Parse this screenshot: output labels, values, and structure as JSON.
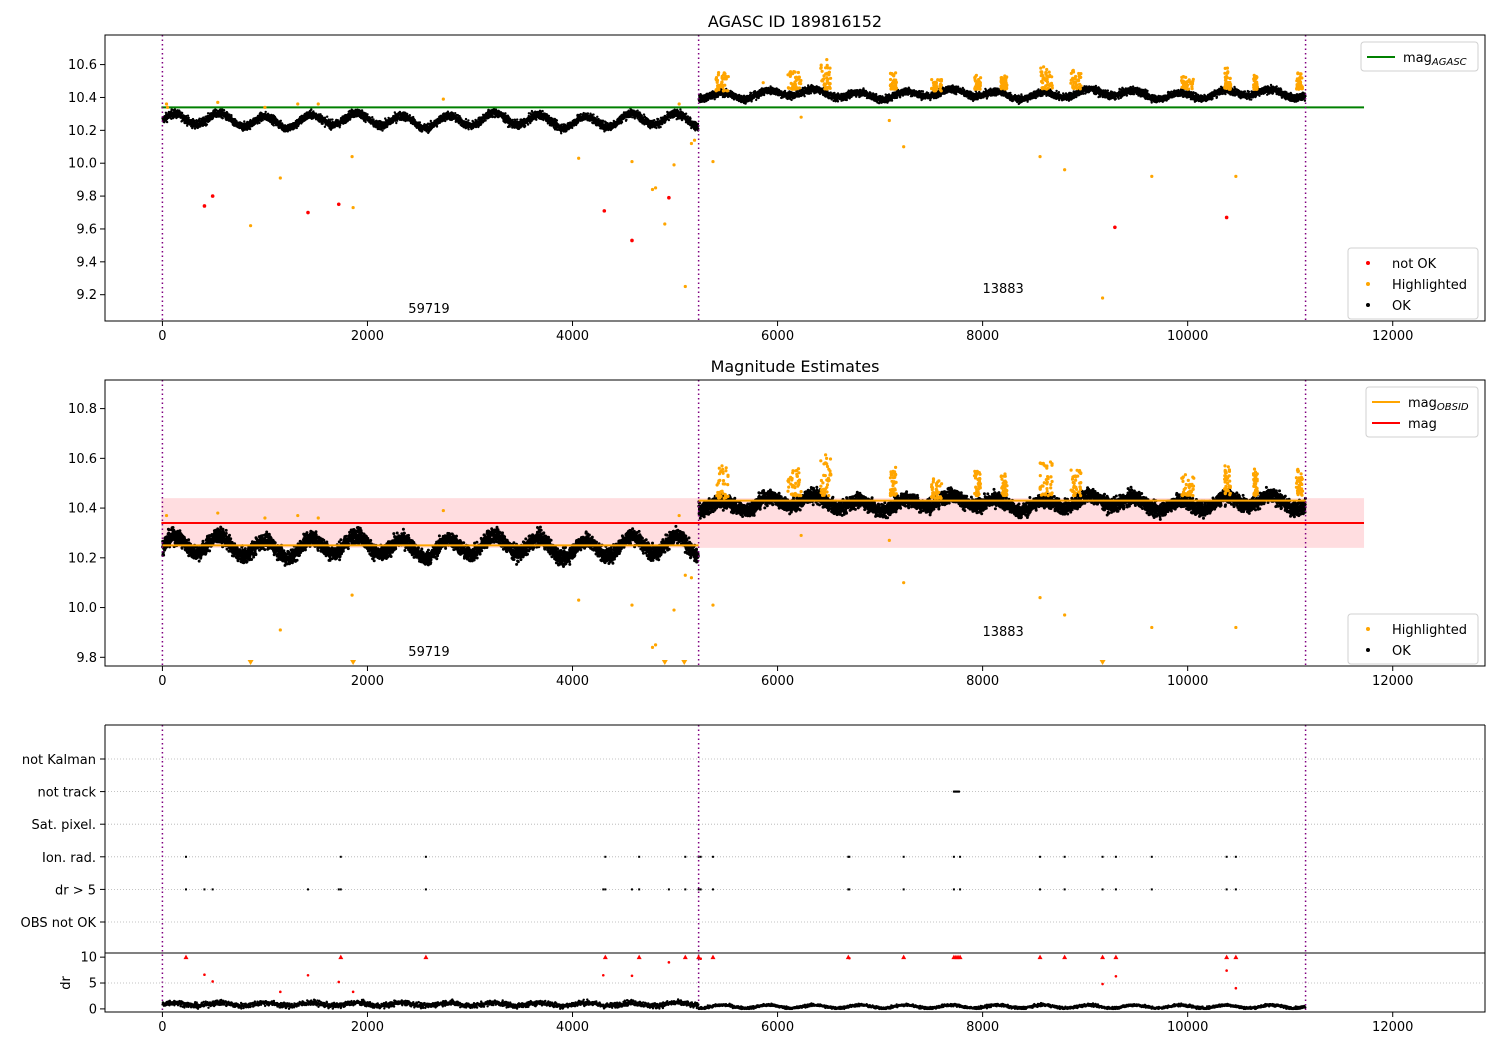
{
  "figure": {
    "title_top": "AGASC ID 189816152",
    "title_middle": "Magnitude Estimates"
  },
  "colors": {
    "ok": "#000000",
    "highlighted": "#ffa500",
    "not_ok": "#ff0000",
    "mag_agasc": "#008000",
    "mag_obsid": "#ffa500",
    "mag": "#ff0000",
    "mag_band": "#ffdde0",
    "obsid_boundary": "#800080",
    "grid": "#b0b0b0"
  },
  "chart_data": [
    {
      "type": "scatter",
      "title": "AGASC ID 189816152",
      "xlim": [
        -560,
        12900
      ],
      "ylim": [
        9.04,
        10.78
      ],
      "x_ticks": [
        0,
        2000,
        4000,
        6000,
        8000,
        10000,
        12000
      ],
      "y_ticks": [
        9.2,
        9.4,
        9.6,
        9.8,
        10.0,
        10.2,
        10.4,
        10.6
      ],
      "legend_position": "lower-right",
      "legend_top": {
        "entries": [
          {
            "label": "mag",
            "subscript": "AGASC",
            "style": "line",
            "color_key": "mag_agasc"
          }
        ],
        "position": "upper-right"
      },
      "legend_bottom": {
        "entries": [
          {
            "label": "not OK",
            "color_key": "not_ok"
          },
          {
            "label": "Highlighted",
            "color_key": "highlighted"
          },
          {
            "label": "OK",
            "color_key": "ok"
          }
        ]
      },
      "reference_lines": [
        {
          "name": "mag_AGASC",
          "y": 10.34,
          "x": [
            -10,
            11720
          ]
        }
      ],
      "obsid_boundaries": [
        0,
        5230,
        11150
      ],
      "obsid_labels": [
        {
          "text": "59719",
          "x": 2600,
          "y": 9.09
        },
        {
          "text": "13883",
          "x": 8200,
          "y": 9.21
        }
      ],
      "segments": [
        {
          "x": [
            0,
            5230
          ],
          "mean": 10.26,
          "amplitude": 0.035,
          "noise": 0.025
        },
        {
          "x": [
            5230,
            11150
          ],
          "mean": 10.42,
          "amplitude": 0.02,
          "noise": 0.022
        }
      ],
      "highlighted_outliers": [
        [
          40,
          10.36
        ],
        [
          50,
          10.34
        ],
        [
          540,
          10.37
        ],
        [
          860,
          9.62
        ],
        [
          1000,
          10.34
        ],
        [
          1150,
          9.91
        ],
        [
          1320,
          10.36
        ],
        [
          1520,
          10.36
        ],
        [
          1850,
          10.04
        ],
        [
          1860,
          9.73
        ],
        [
          2740,
          10.39
        ],
        [
          4060,
          10.03
        ],
        [
          4580,
          10.01
        ],
        [
          4780,
          9.84
        ],
        [
          4810,
          9.85
        ],
        [
          4900,
          9.63
        ],
        [
          4990,
          9.99
        ],
        [
          5040,
          10.36
        ],
        [
          5100,
          9.25
        ],
        [
          5160,
          10.12
        ],
        [
          5190,
          10.14
        ],
        [
          5370,
          10.01
        ],
        [
          5460,
          10.52
        ],
        [
          5480,
          10.55
        ],
        [
          5860,
          10.49
        ],
        [
          6230,
          10.28
        ],
        [
          6480,
          10.63
        ],
        [
          7090,
          10.26
        ],
        [
          7230,
          10.1
        ],
        [
          8560,
          10.04
        ],
        [
          8800,
          9.96
        ],
        [
          9170,
          9.18
        ],
        [
          9650,
          9.92
        ],
        [
          10470,
          9.92
        ]
      ],
      "highlighted_clusters": [
        {
          "x": [
            5400,
            5520
          ],
          "y": [
            10.44,
            10.56
          ]
        },
        {
          "x": [
            6100,
            6230
          ],
          "y": [
            10.45,
            10.56
          ]
        },
        {
          "x": [
            6420,
            6520
          ],
          "y": [
            10.45,
            10.6
          ]
        },
        {
          "x": [
            7100,
            7160
          ],
          "y": [
            10.45,
            10.56
          ]
        },
        {
          "x": [
            7500,
            7600
          ],
          "y": [
            10.44,
            10.52
          ]
        },
        {
          "x": [
            7920,
            7980
          ],
          "y": [
            10.45,
            10.54
          ]
        },
        {
          "x": [
            8180,
            8240
          ],
          "y": [
            10.45,
            10.54
          ]
        },
        {
          "x": [
            8560,
            8680
          ],
          "y": [
            10.45,
            10.59
          ]
        },
        {
          "x": [
            8860,
            8960
          ],
          "y": [
            10.45,
            10.57
          ]
        },
        {
          "x": [
            9940,
            10060
          ],
          "y": [
            10.45,
            10.53
          ]
        },
        {
          "x": [
            10360,
            10420
          ],
          "y": [
            10.45,
            10.58
          ]
        },
        {
          "x": [
            10640,
            10680
          ],
          "y": [
            10.45,
            10.55
          ]
        },
        {
          "x": [
            11060,
            11120
          ],
          "y": [
            10.45,
            10.55
          ]
        }
      ],
      "not_ok_points": [
        [
          410,
          9.74
        ],
        [
          490,
          9.8
        ],
        [
          1420,
          9.7
        ],
        [
          1720,
          9.75
        ],
        [
          4310,
          9.71
        ],
        [
          4580,
          9.53
        ],
        [
          4940,
          9.79
        ],
        [
          9290,
          9.61
        ],
        [
          10380,
          9.67
        ]
      ]
    },
    {
      "type": "scatter",
      "title": "Magnitude Estimates",
      "xlim": [
        -560,
        12900
      ],
      "ylim": [
        9.765,
        10.915
      ],
      "x_ticks": [
        0,
        2000,
        4000,
        6000,
        8000,
        10000,
        12000
      ],
      "y_ticks": [
        9.8,
        10.0,
        10.2,
        10.4,
        10.6,
        10.8
      ],
      "legend_top": {
        "entries": [
          {
            "label": "mag",
            "subscript": "OBSID",
            "style": "line",
            "color_key": "mag_obsid"
          },
          {
            "label": "mag",
            "subscript": "",
            "style": "line",
            "color_key": "mag"
          }
        ],
        "position": "upper-right"
      },
      "legend_bottom": {
        "entries": [
          {
            "label": "Highlighted",
            "color_key": "highlighted"
          },
          {
            "label": "OK",
            "color_key": "ok"
          }
        ],
        "position": "lower-right"
      },
      "mag_line": {
        "y": 10.34,
        "band": [
          10.24,
          10.44
        ],
        "x": [
          -10,
          11720
        ]
      },
      "mag_obsid_lines": [
        {
          "x": [
            0,
            5230
          ],
          "y": 10.25
        },
        {
          "x": [
            5230,
            11150
          ],
          "y": 10.43
        }
      ],
      "obsid_boundaries": [
        0,
        5230,
        11150
      ],
      "obsid_labels": [
        {
          "text": "59719",
          "x": 2600,
          "y": 9.805
        },
        {
          "text": "13883",
          "x": 8200,
          "y": 9.885
        }
      ],
      "segments": [
        {
          "x": [
            0,
            5230
          ],
          "mean": 10.245,
          "amplitude": 0.035,
          "noise": 0.03
        },
        {
          "x": [
            5230,
            11150
          ],
          "mean": 10.42,
          "amplitude": 0.02,
          "noise": 0.028
        }
      ],
      "highlighted_outliers": [
        [
          40,
          10.37
        ],
        [
          540,
          10.38
        ],
        [
          1000,
          10.36
        ],
        [
          1150,
          9.91
        ],
        [
          1320,
          10.37
        ],
        [
          1520,
          10.36
        ],
        [
          1850,
          10.05
        ],
        [
          2740,
          10.39
        ],
        [
          4060,
          10.03
        ],
        [
          4580,
          10.01
        ],
        [
          4780,
          9.84
        ],
        [
          4810,
          9.85
        ],
        [
          4990,
          9.99
        ],
        [
          5040,
          10.37
        ],
        [
          5100,
          10.13
        ],
        [
          5160,
          10.12
        ],
        [
          5370,
          10.01
        ],
        [
          6230,
          10.29
        ],
        [
          7090,
          10.27
        ],
        [
          7230,
          10.1
        ],
        [
          8560,
          10.04
        ],
        [
          8800,
          9.97
        ],
        [
          9650,
          9.92
        ],
        [
          10470,
          9.92
        ]
      ],
      "highlighted_clipped_x": [
        860,
        1860,
        4900,
        5090,
        9170
      ],
      "highlighted_clusters": [
        {
          "x": [
            5400,
            5520
          ],
          "y": [
            10.44,
            10.57
          ]
        },
        {
          "x": [
            6100,
            6230
          ],
          "y": [
            10.45,
            10.56
          ]
        },
        {
          "x": [
            6420,
            6520
          ],
          "y": [
            10.45,
            10.62
          ]
        },
        {
          "x": [
            7100,
            7160
          ],
          "y": [
            10.45,
            10.57
          ]
        },
        {
          "x": [
            7500,
            7600
          ],
          "y": [
            10.44,
            10.52
          ]
        },
        {
          "x": [
            7920,
            7980
          ],
          "y": [
            10.45,
            10.55
          ]
        },
        {
          "x": [
            8180,
            8240
          ],
          "y": [
            10.45,
            10.54
          ]
        },
        {
          "x": [
            8560,
            8680
          ],
          "y": [
            10.45,
            10.6
          ]
        },
        {
          "x": [
            8860,
            8960
          ],
          "y": [
            10.45,
            10.57
          ]
        },
        {
          "x": [
            9940,
            10060
          ],
          "y": [
            10.45,
            10.54
          ]
        },
        {
          "x": [
            10360,
            10420
          ],
          "y": [
            10.45,
            10.58
          ]
        },
        {
          "x": [
            10640,
            10680
          ],
          "y": [
            10.45,
            10.56
          ]
        },
        {
          "x": [
            11060,
            11120
          ],
          "y": [
            10.45,
            10.56
          ]
        }
      ]
    },
    {
      "type": "scatter",
      "title": "",
      "xlim": [
        -560,
        12900
      ],
      "flag_rows": [
        "not Kalman",
        "not track",
        "Sat. pixel.",
        "Ion. rad.",
        "dr > 5",
        "OBS not OK"
      ],
      "x_ticks": [
        0,
        2000,
        4000,
        6000,
        8000,
        10000,
        12000
      ],
      "obsid_boundaries": [
        0,
        5230,
        11150
      ],
      "flags": {
        "not track": [
          7720,
          7730,
          7740,
          7750,
          7760,
          7770
        ],
        "Ion. rad.": [
          230,
          1740,
          2570,
          4320,
          4650,
          5100,
          5230,
          5250,
          5370,
          6690,
          6700,
          7230,
          7720,
          7780,
          8560,
          8800,
          9170,
          9300,
          9650,
          10380,
          10470
        ],
        "dr > 5": [
          230,
          410,
          490,
          1420,
          1720,
          1740,
          2570,
          4300,
          4320,
          4580,
          4650,
          4940,
          5100,
          5230,
          5250,
          5370,
          6690,
          6700,
          7230,
          7720,
          7780,
          8560,
          8800,
          9170,
          9300,
          9650,
          10380,
          10470
        ]
      },
      "dr_panel": {
        "ylabel": "dr",
        "y_ticks": [
          0,
          5,
          10
        ],
        "ylim": [
          -0.6,
          10.8
        ],
        "clip": 10,
        "red_points": [
          [
            230,
            10
          ],
          [
            410,
            6.6
          ],
          [
            490,
            5.3
          ],
          [
            1150,
            3.3
          ],
          [
            1420,
            6.5
          ],
          [
            1720,
            5.2
          ],
          [
            1740,
            10
          ],
          [
            1860,
            3.3
          ],
          [
            2570,
            10
          ],
          [
            4300,
            6.5
          ],
          [
            4320,
            10
          ],
          [
            4580,
            6.4
          ],
          [
            4650,
            10
          ],
          [
            4940,
            9
          ],
          [
            5100,
            10
          ],
          [
            5230,
            10
          ],
          [
            5250,
            9.7
          ],
          [
            5370,
            10
          ],
          [
            6690,
            10
          ],
          [
            6700,
            9.8
          ],
          [
            7230,
            10
          ],
          [
            7720,
            10
          ],
          [
            7740,
            10
          ],
          [
            7760,
            10
          ],
          [
            7780,
            10
          ],
          [
            8560,
            10
          ],
          [
            8800,
            10
          ],
          [
            9170,
            10
          ],
          [
            9170,
            4.8
          ],
          [
            9300,
            10
          ],
          [
            9300,
            6.3
          ],
          [
            10380,
            10
          ],
          [
            10380,
            7.4
          ],
          [
            10470,
            10
          ],
          [
            10470,
            4
          ]
        ],
        "segments": [
          {
            "x": [
              0,
              5230
            ],
            "mean": 0.9,
            "noise": 0.5
          },
          {
            "x": [
              5230,
              11150
            ],
            "mean": 0.45,
            "noise": 0.25
          }
        ]
      }
    }
  ]
}
